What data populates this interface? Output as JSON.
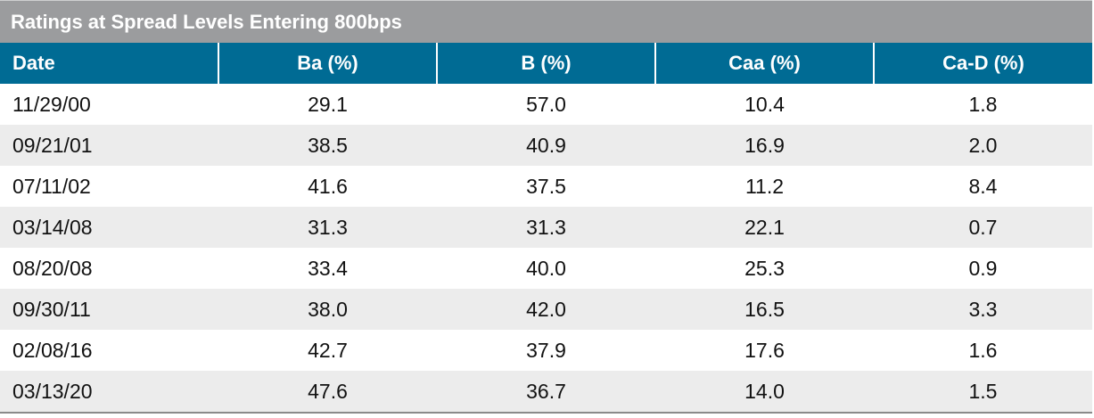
{
  "table": {
    "title": "Ratings at Spread Levels Entering 800bps",
    "columns": [
      "Date",
      "Ba (%)",
      "B (%)",
      "Caa (%)",
      "Ca-D (%)"
    ],
    "rows": [
      [
        "11/29/00",
        "29.1",
        "57.0",
        "10.4",
        "1.8"
      ],
      [
        "09/21/01",
        "38.5",
        "40.9",
        "16.9",
        "2.0"
      ],
      [
        "07/11/02",
        "41.6",
        "37.5",
        "11.2",
        "8.4"
      ],
      [
        "03/14/08",
        "31.3",
        "31.3",
        "22.1",
        "0.7"
      ],
      [
        "08/20/08",
        "33.4",
        "40.0",
        "25.3",
        "0.9"
      ],
      [
        "09/30/11",
        "38.0",
        "42.0",
        "16.5",
        "3.3"
      ],
      [
        "02/08/16",
        "42.7",
        "37.9",
        "17.6",
        "1.6"
      ],
      [
        "03/13/20",
        "47.6",
        "36.7",
        "14.0",
        "1.5"
      ]
    ]
  },
  "colors": {
    "title_bar": "#9b9c9e",
    "header": "#006b94",
    "row_alt": "#ececec"
  }
}
